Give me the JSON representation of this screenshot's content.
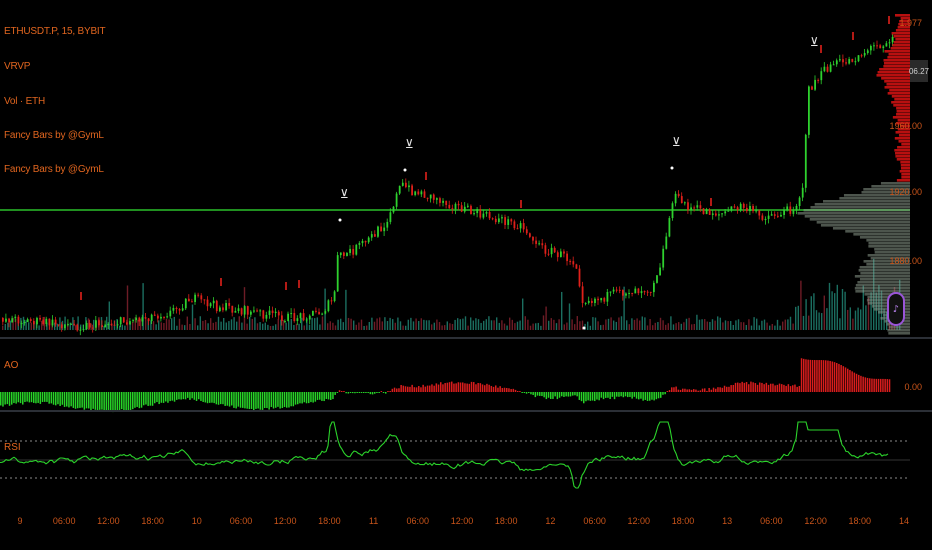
{
  "legend": {
    "symbol": "ETHUSDT.P, 15, BYBIT",
    "items": [
      "VRVP",
      "Vol · ETH",
      "Fancy Bars by @GymL",
      "Fancy Bars by @GymL"
    ]
  },
  "price_axis": {
    "labels": [
      "1.977",
      "1960.00",
      "1920.00",
      "1880.00"
    ],
    "current_price": "06.27"
  },
  "ao_panel": {
    "label": "AO",
    "scale_label": "0.00"
  },
  "rsi_panel": {
    "label": "RSI"
  },
  "time_axis": {
    "ticks": [
      "9",
      "06:00",
      "12:00",
      "18:00",
      "10",
      "06:00",
      "12:00",
      "18:00",
      "11",
      "06:00",
      "12:00",
      "18:00",
      "12",
      "06:00",
      "12:00",
      "18:00",
      "13",
      "06:00",
      "12:00",
      "18:00",
      "14"
    ]
  },
  "colors": {
    "up": "#2ed12e",
    "down": "#e0201a",
    "level_line": "#2bbf2b",
    "ao_up": "#27d327",
    "ao_down": "#d91d1d",
    "rsi_line": "#2bd32b",
    "volume_profile_up": "#8d9a8d",
    "volume_profile_down": "#d81313",
    "text_accent": "#e0651f"
  }
}
